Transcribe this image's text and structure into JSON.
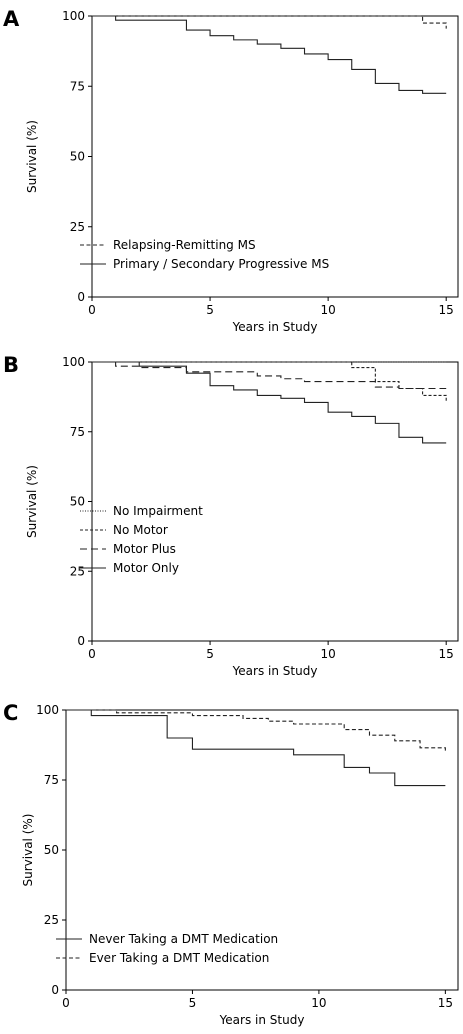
{
  "chart_data": [
    {
      "panel": "A",
      "type": "line",
      "xlabel": "Years in Study",
      "ylabel": "Survival (%)",
      "xlim": [
        0,
        15.5
      ],
      "ylim": [
        0,
        100
      ],
      "xticks": [
        0,
        5,
        10,
        15
      ],
      "yticks": [
        0,
        25,
        50,
        75,
        100
      ],
      "legend": "bottom-left",
      "series": [
        {
          "name": "Relapsing-Remitting MS",
          "dash": "dashed",
          "x": [
            0,
            14,
            15
          ],
          "y": [
            100,
            97.5,
            95.5
          ]
        },
        {
          "name": "Primary / Secondary Progressive MS",
          "dash": "solid",
          "x": [
            0,
            1,
            4,
            5,
            6,
            7,
            8,
            9,
            10,
            11,
            12,
            13,
            14,
            15
          ],
          "y": [
            100,
            98.5,
            95,
            93,
            91.5,
            90,
            88.5,
            86.5,
            84.5,
            81,
            76,
            73.5,
            72.5,
            72.5
          ]
        }
      ]
    },
    {
      "panel": "B",
      "type": "line",
      "xlabel": "Years in Study",
      "ylabel": "Survival (%)",
      "xlim": [
        0,
        15.5
      ],
      "ylim": [
        0,
        100
      ],
      "xticks": [
        0,
        5,
        10,
        15
      ],
      "yticks": [
        0,
        25,
        50,
        75,
        100
      ],
      "legend": "bottom-left",
      "series": [
        {
          "name": "No Impairment",
          "dash": "dotted",
          "x": [
            0,
            15
          ],
          "y": [
            100,
            100
          ]
        },
        {
          "name": "No Motor",
          "dash": "short-dash",
          "x": [
            0,
            11,
            12,
            13,
            14,
            15
          ],
          "y": [
            100,
            98,
            93,
            90.5,
            88,
            86
          ]
        },
        {
          "name": "Motor Plus",
          "dash": "long-dash",
          "x": [
            0,
            1,
            2,
            4,
            7,
            8,
            9,
            12,
            13,
            14,
            15
          ],
          "y": [
            100,
            98.5,
            98,
            96.5,
            95,
            94,
            93,
            91,
            90.5,
            90.5,
            90.5
          ]
        },
        {
          "name": "Motor Only",
          "dash": "solid",
          "x": [
            0,
            2,
            4,
            5,
            6,
            7,
            8,
            9,
            10,
            11,
            12,
            13,
            14,
            15
          ],
          "y": [
            100,
            98.5,
            96,
            91.5,
            90,
            88,
            87,
            85.5,
            82,
            80.5,
            78,
            73,
            71,
            71
          ]
        }
      ]
    },
    {
      "panel": "C",
      "type": "line",
      "xlabel": "Years in Study",
      "ylabel": "Survival (%)",
      "xlim": [
        0,
        15.5
      ],
      "ylim": [
        0,
        100
      ],
      "xticks": [
        0,
        5,
        10,
        15
      ],
      "yticks": [
        0,
        25,
        50,
        75,
        100
      ],
      "legend": "bottom-left",
      "series": [
        {
          "name": "Never Taking a DMT Medication",
          "dash": "solid",
          "x": [
            0,
            1,
            4,
            5,
            9,
            11,
            12,
            13,
            15
          ],
          "y": [
            100,
            98,
            90,
            86,
            84,
            79.5,
            77.5,
            73,
            73
          ]
        },
        {
          "name": "Ever Taking a DMT Medication",
          "dash": "dashed",
          "x": [
            0,
            2,
            5,
            7,
            8,
            9,
            11,
            12,
            13,
            14,
            15
          ],
          "y": [
            100,
            99,
            98,
            97,
            96,
            95,
            93,
            91,
            89,
            86.5,
            85.5
          ]
        }
      ]
    }
  ]
}
